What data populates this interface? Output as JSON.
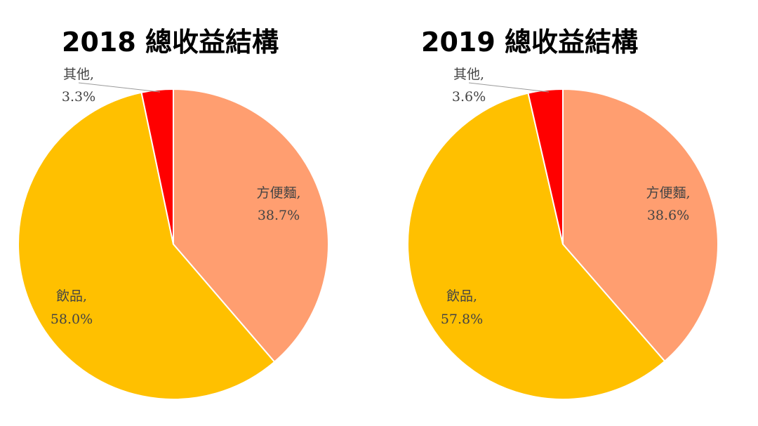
{
  "colors": {
    "noodles": "#FF9E70",
    "beverages": "#FFC000",
    "others": "#FF0000",
    "leader": "#9a9a9a"
  },
  "chart_data": [
    {
      "type": "pie",
      "title": "2018 總收益結構",
      "slices": [
        {
          "key": "noodles",
          "name": "方便麵,",
          "value": 38.7,
          "value_label": "38.7%"
        },
        {
          "key": "beverages",
          "name": "飲品,",
          "value": 58.0,
          "value_label": "58.0%"
        },
        {
          "key": "others",
          "name": "其他,",
          "value": 3.3,
          "value_label": "3.3%"
        }
      ]
    },
    {
      "type": "pie",
      "title": "2019 總收益結構",
      "slices": [
        {
          "key": "noodles",
          "name": "方便麵,",
          "value": 38.6,
          "value_label": "38.6%"
        },
        {
          "key": "beverages",
          "name": "飲品,",
          "value": 57.8,
          "value_label": "57.8%"
        },
        {
          "key": "others",
          "name": "其他,",
          "value": 3.6,
          "value_label": "3.6%"
        }
      ]
    }
  ]
}
